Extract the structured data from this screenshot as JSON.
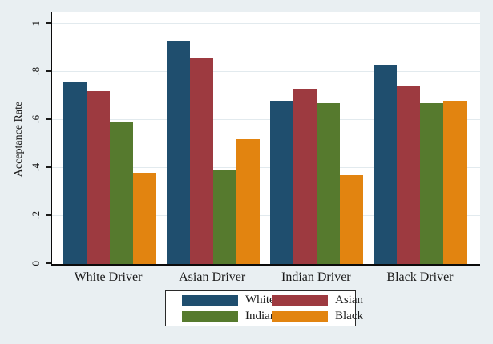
{
  "figure": {
    "background_color": "#e9eff2",
    "plot_background_color": "#ffffff",
    "gridline_color": "#e2eaee",
    "axis_color": "#0b0b0b"
  },
  "chart_data": {
    "type": "bar",
    "title": "",
    "xlabel": "",
    "ylabel": "Acceptance Rate",
    "ylim": [
      0,
      1.05
    ],
    "grid": true,
    "legend_position": "bottom-center",
    "categories": [
      "White Driver",
      "Asian Driver",
      "Indian Driver",
      "Black Driver"
    ],
    "series": [
      {
        "name": "White",
        "color": "#1f4e6e",
        "values": [
          0.76,
          0.93,
          0.68,
          0.83
        ]
      },
      {
        "name": "Asian",
        "color": "#9d3a40",
        "values": [
          0.72,
          0.86,
          0.73,
          0.74
        ]
      },
      {
        "name": "Indian",
        "color": "#567a2e",
        "values": [
          0.59,
          0.39,
          0.67,
          0.67
        ]
      },
      {
        "name": "Black",
        "color": "#e28410",
        "values": [
          0.38,
          0.52,
          0.37,
          0.68
        ]
      }
    ],
    "yticks": [
      {
        "value": 0,
        "label": "0"
      },
      {
        "value": 0.2,
        "label": ".2"
      },
      {
        "value": 0.4,
        "label": ".4"
      },
      {
        "value": 0.6,
        "label": ".6"
      },
      {
        "value": 0.8,
        "label": ".8"
      },
      {
        "value": 1,
        "label": "1"
      }
    ],
    "legend_rows": [
      [
        "White",
        "Asian"
      ],
      [
        "Indian",
        "Black"
      ]
    ]
  }
}
